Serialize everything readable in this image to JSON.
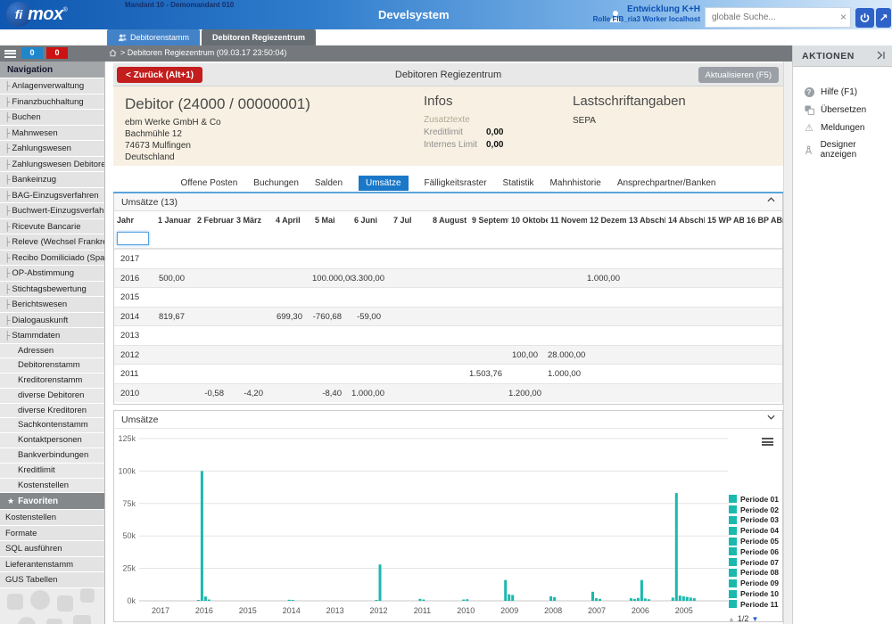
{
  "topbar": {
    "mandant": "Mandant 10 - Demomandant 010",
    "logo_fi": "fi",
    "logo_mox": "mox",
    "logo_reg": "®",
    "app_title": "Develsystem",
    "user_name": "Entwicklung K+H",
    "user_role": "Rolle FIB_ria3 Worker localhost",
    "search_placeholder": "globale Suche...",
    "search_clear": "×",
    "expand_arrow": "↗"
  },
  "window_tabs": {
    "tab1": "Debitorenstamm",
    "tab2": "Debitoren Regiezentrum"
  },
  "toolbar": {
    "badge_blue": "0",
    "badge_red": "0",
    "breadcrumb": "> Debitoren Regiezentrum (09.03.17 23:50:04)"
  },
  "sidebar": {
    "nav_header": "Navigation",
    "items": [
      "Anlagenverwaltung",
      "Finanzbuchhaltung",
      "Buchen",
      "Mahnwesen",
      "Zahlungswesen",
      "Zahlungswesen Debitoren",
      "Bankeinzug",
      "BAG-Einzugsverfahren",
      "Buchwert-Einzugsverfahren",
      "Ricevute Bancarie",
      "Releve (Wechsel Frankreich)",
      "Recibo Domiliciado (Spanien)",
      "OP-Abstimmung",
      "Stichtagsbewertung",
      "Berichtswesen",
      "Dialogauskunft",
      "Stammdaten"
    ],
    "sub_items": [
      "Adressen",
      "Debitorenstamm",
      "Kreditorenstamm",
      "diverse Debitoren",
      "diverse Kreditoren",
      "Sachkontenstamm",
      "Kontaktpersonen",
      "Bankverbindungen",
      "Kreditlimit",
      "Kostenstellen"
    ],
    "fav_header": "Favoriten",
    "fav_star": "★",
    "favorites": [
      "Kostenstellen",
      "Formate",
      "SQL ausführen",
      "Lieferantenstamm",
      "GUS Tabellen"
    ]
  },
  "actions": {
    "header": "AKTIONEN",
    "items": [
      {
        "icon": "help-icon",
        "label": "Hilfe (F1)"
      },
      {
        "icon": "translate-icon",
        "label": "Übersetzen"
      },
      {
        "icon": "warning-icon",
        "label": "Meldungen"
      },
      {
        "icon": "designer-icon",
        "label": "Designer anzeigen"
      }
    ]
  },
  "content": {
    "back_button": "< Zurück (Alt+1)",
    "page_title": "Debitoren Regiezentrum",
    "refresh_button": "Aktualisieren (F5)",
    "debitor": {
      "title": "Debitor  (24000 / 00000001)",
      "address": [
        "ebm Werke GmbH & Co",
        "Bachmühle 12",
        "74673 Mulfingen",
        "Deutschland"
      ]
    },
    "infos": {
      "title": "Infos",
      "zusatztexte": "Zusatztexte",
      "kreditlimit_label": "Kreditlimit",
      "kreditlimit_value": "0,00",
      "internes_label": "Internes Limit",
      "internes_value": "0,00"
    },
    "lastschrift": {
      "title": "Lastschriftangaben",
      "value": "SEPA"
    },
    "tabs": [
      "Offene Posten",
      "Buchungen",
      "Salden",
      "Umsätze",
      "Fälligkeitsraster",
      "Statistik",
      "Mahnhistorie",
      "Ansprechpartner/Banken"
    ],
    "active_tab": "Umsätze"
  },
  "table": {
    "title": "Umsätze (13)",
    "columns": [
      "Jahr",
      "1 Januar",
      "2 Februar",
      "3 März",
      "4 April",
      "5 Mai",
      "6 Juni",
      "7 Jul",
      "8 August",
      "9 Septemt",
      "10 Oktobe",
      "11 Novemi",
      "12 Dezem",
      "13 Abschli",
      "14 Abschl.",
      "15 WP AB",
      "16 BP ABs"
    ],
    "filter_value": "",
    "rows": [
      {
        "year": "2017",
        "cells": {}
      },
      {
        "year": "2016",
        "cells": {
          "1": "500,00",
          "5": "100.000,00",
          "6": "3.300,00",
          "12": "1.000,00"
        }
      },
      {
        "year": "2015",
        "cells": {}
      },
      {
        "year": "2014",
        "cells": {
          "1": "819,67",
          "4": "699,30",
          "5": "-760,68",
          "6": "-59,00"
        }
      },
      {
        "year": "2013",
        "cells": {}
      },
      {
        "year": "2012",
        "cells": {
          "10": "100,00",
          "11": "28.000,00"
        }
      },
      {
        "year": "2011",
        "cells": {
          "9": "1.503,76",
          "11": "1.000,00"
        }
      },
      {
        "year": "2010",
        "cells": {
          "2": "-0,58",
          "3": "-4,20",
          "5": "-8,40",
          "6": "1.000,00",
          "10": "1.200,00"
        }
      }
    ]
  },
  "chart": {
    "title": "Umsätze",
    "pagination": "1/2",
    "pag_up": "▲",
    "pag_down": "▼"
  },
  "chart_data": {
    "type": "bar",
    "title": "Umsätze",
    "x": [
      "2017",
      "2016",
      "2015",
      "2014",
      "2013",
      "2012",
      "2011",
      "2010",
      "2009",
      "2008",
      "2007",
      "2006",
      "2005"
    ],
    "yticks": [
      "0k",
      "25k",
      "50k",
      "75k",
      "100k",
      "125k"
    ],
    "ylim": [
      0,
      125000
    ],
    "grid": true,
    "bar_color": "#1ab9ae",
    "legend": [
      "Periode 01",
      "Periode 02",
      "Periode 03",
      "Periode 04",
      "Periode 05",
      "Periode 06",
      "Periode 07",
      "Periode 08",
      "Periode 09",
      "Periode 10",
      "Periode 11"
    ],
    "legend_position": "right",
    "groups": [
      {
        "year": "2017",
        "values": []
      },
      {
        "year": "2016",
        "values": [
          500,
          100000,
          3300,
          1000
        ]
      },
      {
        "year": "2015",
        "values": []
      },
      {
        "year": "2014",
        "values": [
          820,
          700
        ]
      },
      {
        "year": "2013",
        "values": []
      },
      {
        "year": "2012",
        "values": [
          100,
          28000
        ]
      },
      {
        "year": "2011",
        "values": [
          1500,
          1000
        ]
      },
      {
        "year": "2010",
        "values": [
          1000,
          1200
        ]
      },
      {
        "year": "2009",
        "values": [
          16000,
          5000,
          4500
        ]
      },
      {
        "year": "2008",
        "values": [
          3500,
          2800
        ]
      },
      {
        "year": "2007",
        "values": [
          7000,
          2000,
          1500
        ]
      },
      {
        "year": "2006",
        "values": [
          2000,
          1500,
          2200,
          16000,
          1800,
          1200
        ]
      },
      {
        "year": "2005",
        "values": [
          2500,
          83000,
          4000,
          3500,
          3000,
          2500,
          2000
        ]
      }
    ]
  }
}
